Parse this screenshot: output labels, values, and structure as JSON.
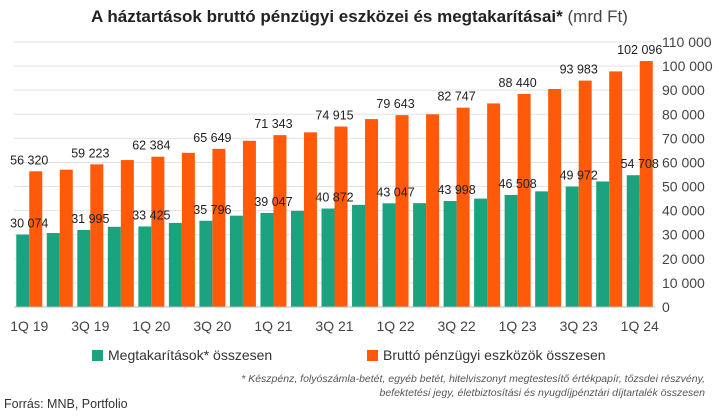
{
  "chart_data": {
    "type": "bar",
    "title_bold": "A háztartások bruttó pénzügyi eszközei és megtakarításai*",
    "title_unit": "(mrd Ft)",
    "categories": [
      "1Q 19",
      "2Q 19",
      "3Q 19",
      "4Q 19",
      "1Q 20",
      "2Q 20",
      "3Q 20",
      "4Q 20",
      "1Q 21",
      "2Q 21",
      "3Q 21",
      "4Q 21",
      "1Q 22",
      "2Q 22",
      "3Q 22",
      "4Q 22",
      "1Q 23",
      "2Q 23",
      "3Q 23",
      "4Q 23",
      "1Q 24"
    ],
    "x_tick_labels": [
      "1Q 19",
      "3Q 19",
      "1Q 20",
      "3Q 20",
      "1Q 21",
      "3Q 21",
      "1Q 22",
      "3Q 22",
      "1Q 23",
      "3Q 23",
      "1Q 24"
    ],
    "series": [
      {
        "name": "Megtakarítások* összesen",
        "color": "#1aa37e",
        "values": [
          30074,
          30700,
          31995,
          33300,
          33425,
          34900,
          35796,
          37900,
          39047,
          39900,
          40872,
          42400,
          43047,
          43100,
          43998,
          45000,
          46508,
          48000,
          49972,
          52100,
          54708
        ]
      },
      {
        "name": "Bruttó pénzügyi eszközök összesen",
        "color": "#ff5a0a",
        "values": [
          56320,
          57000,
          59223,
          61000,
          62384,
          64000,
          65649,
          69000,
          71343,
          72500,
          74915,
          78000,
          79643,
          80000,
          82747,
          84500,
          88440,
          90500,
          93983,
          97800,
          102096
        ]
      }
    ],
    "data_labels": {
      "savings": {
        "0": "30 074",
        "2": "31 995",
        "4": "33 425",
        "6": "35 796",
        "8": "39 047",
        "10": "40 872",
        "12": "43 047",
        "14": "43 998",
        "16": "46 508",
        "18": "49 972",
        "20": "54 708"
      },
      "assets": {
        "0": "56 320",
        "2": "59 223",
        "4": "62 384",
        "6": "65 649",
        "8": "71 343",
        "10": "74 915",
        "12": "79 643",
        "14": "82 747",
        "16": "88 440",
        "18": "93 983",
        "20": "102 096"
      }
    },
    "y_ticks": [
      "0",
      "10 000",
      "20 000",
      "30 000",
      "40 000",
      "50 000",
      "60 000",
      "70 000",
      "80 000",
      "90 000",
      "100 000",
      "110 000"
    ],
    "ylim": [
      0,
      110000
    ],
    "y_axis_side": "right",
    "grid": true,
    "legend_position": "bottom"
  },
  "footnote_line1": "* Készpénz, folyószámla-betét, egyéb betét, hitelviszonyt megtestesítő értékpapír, tőzsdei részvény,",
  "footnote_line2": "befektetési jegy, életbiztosítási és nyugdíjpénztári díjtartalék összesen",
  "source": "Forrás: MNB, Portfolio"
}
